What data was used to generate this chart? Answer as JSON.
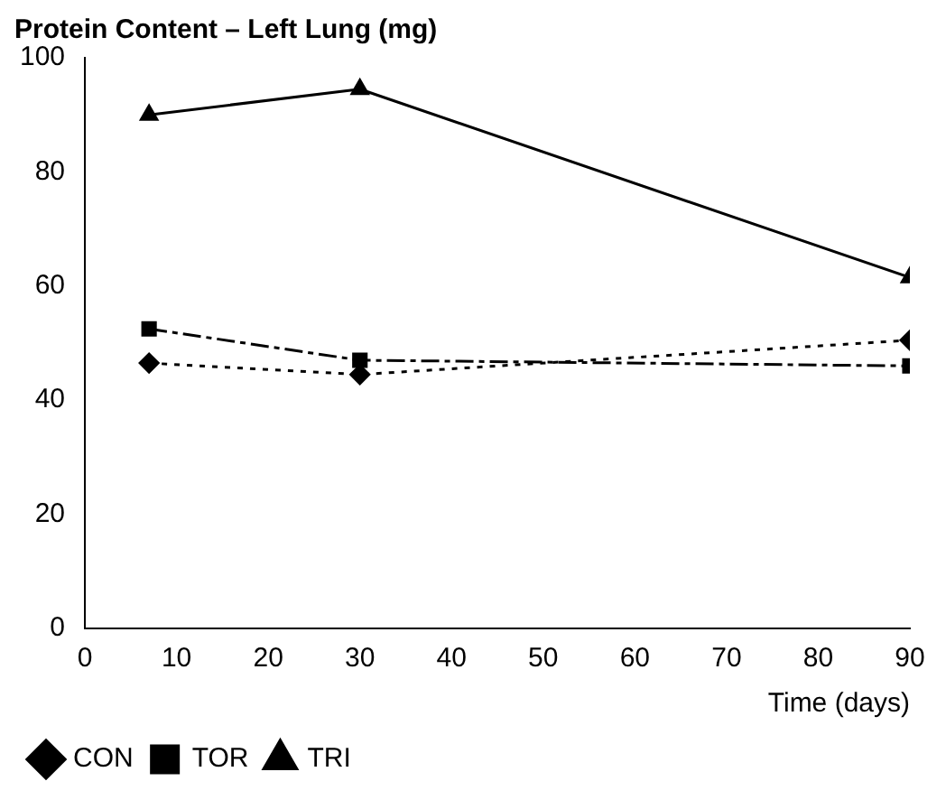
{
  "chart_data": {
    "type": "line",
    "title": "Protein Content – Left Lung (mg)",
    "xlabel": "Time (days)",
    "x": [
      7,
      30,
      90
    ],
    "series": [
      {
        "name": "CON",
        "color": "#000000",
        "values": [
          46.5,
          44.5,
          50.5
        ],
        "marker": "diamond",
        "line_style": "dotted"
      },
      {
        "name": "TOR",
        "color": "#000000",
        "values": [
          52.5,
          47,
          46
        ],
        "marker": "square",
        "line_style": "dashed"
      },
      {
        "name": "TRI",
        "color": "#000000",
        "values": [
          90,
          94.5,
          61.5
        ],
        "marker": "triangle",
        "line_style": "solid"
      }
    ],
    "xlim": [
      0,
      90
    ],
    "xticks": [
      0,
      10,
      20,
      30,
      40,
      50,
      60,
      70,
      80,
      90
    ],
    "ylim": [
      0,
      100
    ],
    "yticks": [
      0,
      20,
      40,
      60,
      80,
      100
    ],
    "grid": false,
    "legend": "bottom left"
  }
}
